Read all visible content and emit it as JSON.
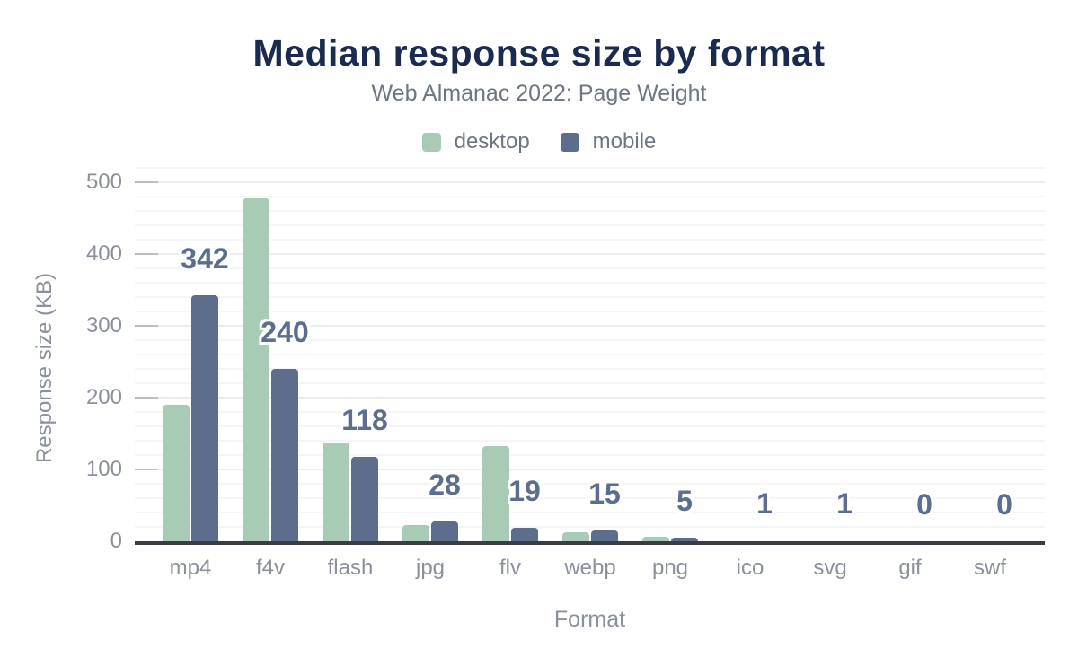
{
  "chart_data": {
    "type": "bar",
    "title": "Median response size by format",
    "subtitle": "Web Almanac 2022: Page Weight",
    "xlabel": "Format",
    "ylabel": "Response size (KB)",
    "categories": [
      "mp4",
      "f4v",
      "flash",
      "jpg",
      "flv",
      "webp",
      "png",
      "ico",
      "svg",
      "gif",
      "swf"
    ],
    "series": [
      {
        "name": "desktop",
        "color": "#a7cbb5",
        "values": [
          190,
          478,
          138,
          22,
          133,
          12,
          6,
          1,
          1,
          0,
          0
        ]
      },
      {
        "name": "mobile",
        "color": "#5d6e8d",
        "values": [
          342,
          240,
          118,
          28,
          19,
          15,
          5,
          1,
          1,
          0,
          0
        ]
      }
    ],
    "data_labels": {
      "series": "mobile",
      "values": [
        "342",
        "240",
        "118",
        "28",
        "19",
        "15",
        "5",
        "1",
        "1",
        "0",
        "0"
      ]
    },
    "ylim": [
      0,
      520
    ],
    "yticks": [
      0,
      100,
      200,
      300,
      400,
      500
    ],
    "ytick_step": 100,
    "minor_grid_step": 20,
    "grid": "horizontal",
    "legend_position": "top"
  },
  "colors": {
    "title": "#1b2a4f",
    "subtitle": "#6e7584",
    "axis_text": "#8a909c",
    "data_label": "#5b6e8e",
    "axis_line": "#373c45",
    "grid_major": "#ebecee",
    "grid_minor": "#f5f5f7",
    "tick": "#b9bdc3",
    "background": "#ffffff"
  }
}
